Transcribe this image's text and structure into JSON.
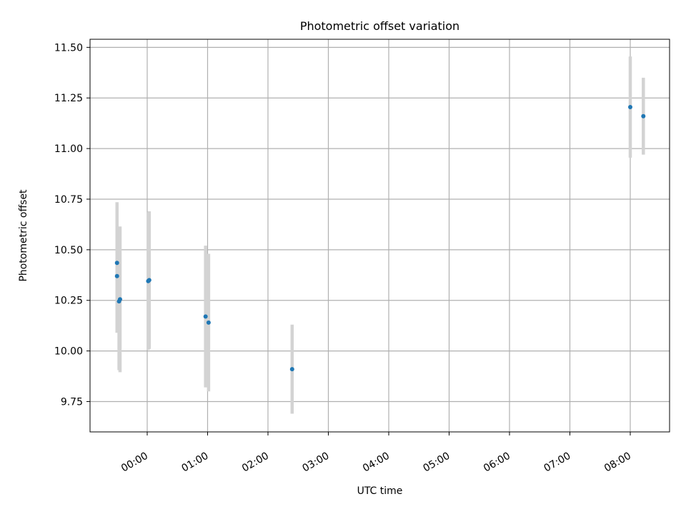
{
  "chart_data": {
    "type": "scatter",
    "title": "Photometric offset variation",
    "xlabel": "UTC time",
    "ylabel": "Photometric offset",
    "x_axis_type": "time",
    "x_tick_labels": [
      "00:00",
      "01:00",
      "02:00",
      "03:00",
      "04:00",
      "05:00",
      "06:00",
      "07:00",
      "08:00"
    ],
    "ylim": [
      9.6,
      11.54
    ],
    "y_ticks": [
      9.75,
      10.0,
      10.25,
      10.5,
      10.75,
      11.0,
      11.25,
      11.5
    ],
    "y_tick_labels": [
      "9.75",
      "10.00",
      "10.25",
      "10.50",
      "10.75",
      "11.00",
      "11.25",
      "11.50"
    ],
    "grid": true,
    "legend": false,
    "colors": {
      "points": "#1f77b4",
      "errorbars": "#d3d3d3",
      "grid": "#b0b0b0",
      "axes": "#000000"
    },
    "series": [
      {
        "points": [
          {
            "x": "23:30",
            "y": 10.435,
            "yerr": 0.3
          },
          {
            "x": "23:30",
            "y": 10.37,
            "yerr": 0.28
          },
          {
            "x": "23:32",
            "y": 10.245,
            "yerr": 0.34
          },
          {
            "x": "23:33",
            "y": 10.255,
            "yerr": 0.36
          },
          {
            "x": "00:01",
            "y": 10.345,
            "yerr": 0.34
          },
          {
            "x": "00:02",
            "y": 10.35,
            "yerr": 0.34
          },
          {
            "x": "00:58",
            "y": 10.17,
            "yerr": 0.35
          },
          {
            "x": "01:01",
            "y": 10.14,
            "yerr": 0.34
          },
          {
            "x": "02:24",
            "y": 9.91,
            "yerr": 0.22
          },
          {
            "x": "08:00",
            "y": 11.205,
            "yerr": 0.25
          },
          {
            "x": "08:13",
            "y": 11.16,
            "yerr": 0.19
          }
        ]
      }
    ]
  }
}
